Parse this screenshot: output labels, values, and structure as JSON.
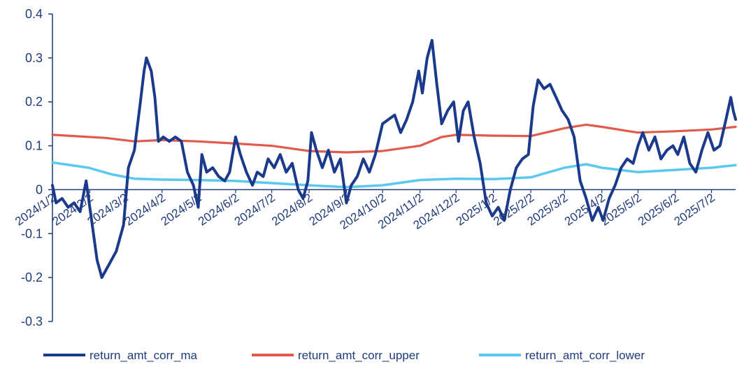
{
  "chart_data": {
    "type": "line",
    "title": "",
    "xlabel": "",
    "ylabel": "",
    "ylim": [
      -0.3,
      0.4
    ],
    "yticks": [
      0.4,
      0.3,
      0.2,
      0.1,
      0,
      -0.1,
      -0.2,
      -0.3
    ],
    "ytick_labels": [
      "0.4",
      "0.3",
      "0.2",
      "0.1",
      "0",
      "-0.1",
      "-0.2",
      "-0.3"
    ],
    "x_tick_labels": [
      "2024/1/2",
      "2024/2/2",
      "2024/3/2",
      "2024/4/2",
      "2024/5/2",
      "2024/6/2",
      "2024/7/2",
      "2024/8/2",
      "2024/9/2",
      "2024/10/2",
      "2024/11/2",
      "2024/12/2",
      "2025/1/2",
      "2025/2/2",
      "2025/3/2",
      "2025/4/2",
      "2025/5/2",
      "2025/6/2",
      "2025/7/2"
    ],
    "x_range": [
      "2024/1/2",
      "2025/7/22"
    ],
    "grid": false,
    "legend_position": "bottom",
    "series": [
      {
        "name": "return_amt_corr_ma",
        "color": "#1b3a8c",
        "points": [
          [
            "2024/1/2",
            0.01
          ],
          [
            "2024/1/5",
            -0.03
          ],
          [
            "2024/1/10",
            -0.02
          ],
          [
            "2024/1/15",
            -0.04
          ],
          [
            "2024/1/20",
            -0.03
          ],
          [
            "2024/1/25",
            -0.05
          ],
          [
            "2024/1/30",
            0.02
          ],
          [
            "2024/2/4",
            -0.08
          ],
          [
            "2024/2/8",
            -0.16
          ],
          [
            "2024/2/12",
            -0.2
          ],
          [
            "2024/2/18",
            -0.17
          ],
          [
            "2024/2/24",
            -0.14
          ],
          [
            "2024/3/1",
            -0.08
          ],
          [
            "2024/3/5",
            0.05
          ],
          [
            "2024/3/10",
            0.09
          ],
          [
            "2024/3/15",
            0.2
          ],
          [
            "2024/3/18",
            0.27
          ],
          [
            "2024/3/20",
            0.3
          ],
          [
            "2024/3/24",
            0.27
          ],
          [
            "2024/3/27",
            0.21
          ],
          [
            "2024/3/30",
            0.11
          ],
          [
            "2024/4/3",
            0.12
          ],
          [
            "2024/4/8",
            0.11
          ],
          [
            "2024/4/13",
            0.12
          ],
          [
            "2024/4/18",
            0.11
          ],
          [
            "2024/4/23",
            0.04
          ],
          [
            "2024/4/28",
            0.01
          ],
          [
            "2024/5/2",
            -0.04
          ],
          [
            "2024/5/5",
            0.08
          ],
          [
            "2024/5/9",
            0.04
          ],
          [
            "2024/5/14",
            0.05
          ],
          [
            "2024/5/19",
            0.03
          ],
          [
            "2024/5/24",
            0.02
          ],
          [
            "2024/5/28",
            0.04
          ],
          [
            "2024/6/2",
            0.12
          ],
          [
            "2024/6/6",
            0.08
          ],
          [
            "2024/6/11",
            0.04
          ],
          [
            "2024/6/16",
            0.01
          ],
          [
            "2024/6/20",
            0.04
          ],
          [
            "2024/6/25",
            0.03
          ],
          [
            "2024/6/29",
            0.07
          ],
          [
            "2024/7/4",
            0.05
          ],
          [
            "2024/7/9",
            0.08
          ],
          [
            "2024/7/14",
            0.04
          ],
          [
            "2024/7/19",
            0.06
          ],
          [
            "2024/7/24",
            0.0
          ],
          [
            "2024/7/28",
            -0.02
          ],
          [
            "2024/8/1",
            0.02
          ],
          [
            "2024/8/4",
            0.13
          ],
          [
            "2024/8/8",
            0.09
          ],
          [
            "2024/8/13",
            0.05
          ],
          [
            "2024/8/18",
            0.09
          ],
          [
            "2024/8/23",
            0.04
          ],
          [
            "2024/8/28",
            0.07
          ],
          [
            "2024/9/2",
            -0.03
          ],
          [
            "2024/9/6",
            0.01
          ],
          [
            "2024/9/11",
            0.03
          ],
          [
            "2024/9/16",
            0.07
          ],
          [
            "2024/9/21",
            0.04
          ],
          [
            "2024/9/26",
            0.08
          ],
          [
            "2024/10/2",
            0.15
          ],
          [
            "2024/10/7",
            0.16
          ],
          [
            "2024/10/12",
            0.17
          ],
          [
            "2024/10/17",
            0.13
          ],
          [
            "2024/10/22",
            0.16
          ],
          [
            "2024/10/27",
            0.2
          ],
          [
            "2024/11/1",
            0.27
          ],
          [
            "2024/11/4",
            0.22
          ],
          [
            "2024/11/8",
            0.3
          ],
          [
            "2024/11/12",
            0.34
          ],
          [
            "2024/11/16",
            0.24
          ],
          [
            "2024/11/20",
            0.15
          ],
          [
            "2024/11/25",
            0.18
          ],
          [
            "2024/11/30",
            0.2
          ],
          [
            "2024/12/4",
            0.11
          ],
          [
            "2024/12/8",
            0.18
          ],
          [
            "2024/12/12",
            0.2
          ],
          [
            "2024/12/17",
            0.12
          ],
          [
            "2024/12/22",
            0.06
          ],
          [
            "2024/12/27",
            -0.03
          ],
          [
            "2025/1/1",
            -0.06
          ],
          [
            "2025/1/6",
            -0.04
          ],
          [
            "2025/1/11",
            -0.07
          ],
          [
            "2025/1/16",
            0.0
          ],
          [
            "2025/1/21",
            0.05
          ],
          [
            "2025/1/26",
            0.07
          ],
          [
            "2025/1/31",
            0.08
          ],
          [
            "2025/2/4",
            0.19
          ],
          [
            "2025/2/8",
            0.25
          ],
          [
            "2025/2/13",
            0.23
          ],
          [
            "2025/2/18",
            0.24
          ],
          [
            "2025/2/23",
            0.21
          ],
          [
            "2025/2/28",
            0.18
          ],
          [
            "2025/3/5",
            0.16
          ],
          [
            "2025/3/10",
            0.12
          ],
          [
            "2025/3/15",
            0.02
          ],
          [
            "2025/3/20",
            -0.02
          ],
          [
            "2025/3/25",
            -0.07
          ],
          [
            "2025/3/30",
            -0.04
          ],
          [
            "2025/4/3",
            -0.07
          ],
          [
            "2025/4/8",
            -0.02
          ],
          [
            "2025/4/13",
            0.01
          ],
          [
            "2025/4/18",
            0.05
          ],
          [
            "2025/4/23",
            0.07
          ],
          [
            "2025/4/28",
            0.06
          ],
          [
            "2025/5/2",
            0.1
          ],
          [
            "2025/5/6",
            0.13
          ],
          [
            "2025/5/11",
            0.09
          ],
          [
            "2025/5/16",
            0.12
          ],
          [
            "2025/5/21",
            0.07
          ],
          [
            "2025/5/26",
            0.09
          ],
          [
            "2025/5/31",
            0.1
          ],
          [
            "2025/6/4",
            0.08
          ],
          [
            "2025/6/9",
            0.12
          ],
          [
            "2025/6/14",
            0.06
          ],
          [
            "2025/6/19",
            0.04
          ],
          [
            "2025/6/24",
            0.09
          ],
          [
            "2025/6/29",
            0.13
          ],
          [
            "2025/7/4",
            0.09
          ],
          [
            "2025/7/9",
            0.1
          ],
          [
            "2025/7/14",
            0.16
          ],
          [
            "2025/7/18",
            0.21
          ],
          [
            "2025/7/20",
            0.18
          ],
          [
            "2025/7/22",
            0.16
          ]
        ]
      },
      {
        "name": "return_amt_corr_upper",
        "color": "#e05a4e",
        "points": [
          [
            "2024/1/2",
            0.125
          ],
          [
            "2024/2/15",
            0.118
          ],
          [
            "2024/3/10",
            0.11
          ],
          [
            "2024/4/2",
            0.113
          ],
          [
            "2024/5/2",
            0.11
          ],
          [
            "2024/6/2",
            0.105
          ],
          [
            "2024/7/2",
            0.1
          ],
          [
            "2024/8/2",
            0.088
          ],
          [
            "2024/9/2",
            0.085
          ],
          [
            "2024/10/2",
            0.088
          ],
          [
            "2024/11/2",
            0.1
          ],
          [
            "2024/11/20",
            0.12
          ],
          [
            "2024/12/2",
            0.125
          ],
          [
            "2025/1/2",
            0.123
          ],
          [
            "2025/2/2",
            0.122
          ],
          [
            "2025/3/2",
            0.14
          ],
          [
            "2025/3/20",
            0.148
          ],
          [
            "2025/4/2",
            0.143
          ],
          [
            "2025/4/20",
            0.135
          ],
          [
            "2025/5/2",
            0.13
          ],
          [
            "2025/6/2",
            0.133
          ],
          [
            "2025/7/2",
            0.137
          ],
          [
            "2025/7/22",
            0.143
          ]
        ]
      },
      {
        "name": "return_amt_corr_lower",
        "color": "#5bc8f0",
        "points": [
          [
            "2024/1/2",
            0.062
          ],
          [
            "2024/2/1",
            0.05
          ],
          [
            "2024/2/20",
            0.035
          ],
          [
            "2024/3/10",
            0.025
          ],
          [
            "2024/4/2",
            0.023
          ],
          [
            "2024/5/2",
            0.022
          ],
          [
            "2024/6/2",
            0.02
          ],
          [
            "2024/7/2",
            0.015
          ],
          [
            "2024/8/2",
            0.01
          ],
          [
            "2024/9/2",
            0.006
          ],
          [
            "2024/10/2",
            0.01
          ],
          [
            "2024/11/2",
            0.022
          ],
          [
            "2024/12/2",
            0.025
          ],
          [
            "2025/1/2",
            0.024
          ],
          [
            "2025/2/2",
            0.028
          ],
          [
            "2025/3/2",
            0.05
          ],
          [
            "2025/3/20",
            0.058
          ],
          [
            "2025/4/2",
            0.05
          ],
          [
            "2025/5/2",
            0.04
          ],
          [
            "2025/6/2",
            0.045
          ],
          [
            "2025/7/2",
            0.05
          ],
          [
            "2025/7/22",
            0.056
          ]
        ]
      }
    ]
  }
}
